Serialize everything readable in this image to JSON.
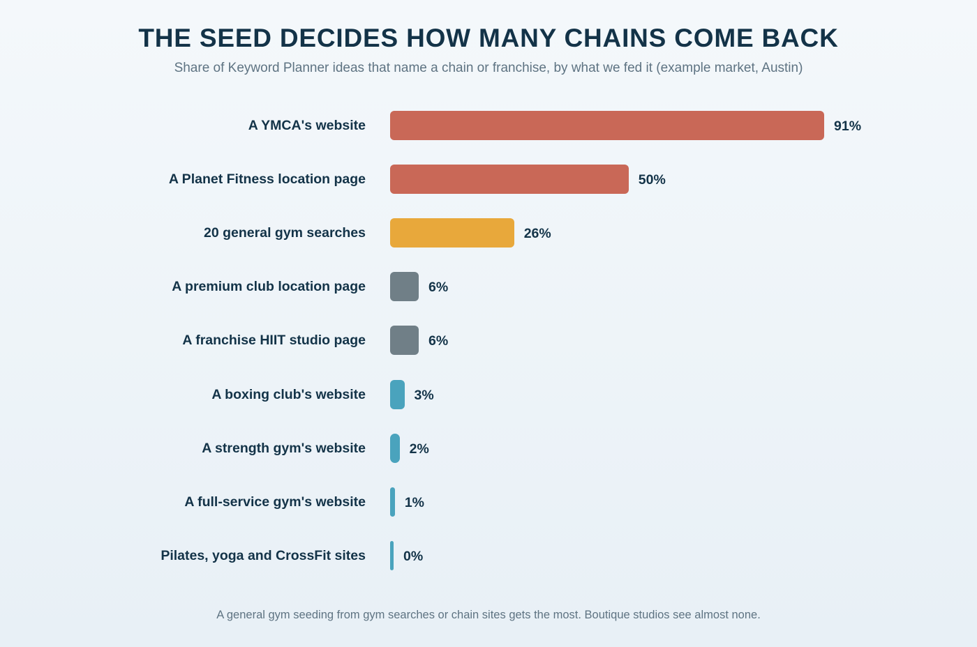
{
  "chart_data": {
    "type": "bar",
    "orientation": "horizontal",
    "title": "THE SEED DECIDES HOW MANY CHAINS COME BACK",
    "subtitle": "Share of Keyword Planner ideas that name a chain or franchise, by what we fed it (example market, Austin)",
    "categories": [
      "A YMCA's website",
      "A Planet Fitness location page",
      "20 general gym searches",
      "A premium club location page",
      "A franchise HIIT studio page",
      "A boxing club's website",
      "A strength gym's website",
      "A full-service gym's website",
      "Pilates, yoga and CrossFit sites"
    ],
    "values": [
      91,
      50,
      26,
      6,
      6,
      3,
      2,
      1,
      0
    ],
    "value_labels": [
      "91%",
      "50%",
      "26%",
      "6%",
      "6%",
      "3%",
      "2%",
      "1%",
      "0%"
    ],
    "bar_colors": [
      "#c96857",
      "#c96857",
      "#e8a83b",
      "#707f87",
      "#707f87",
      "#4aa3bd",
      "#4aa3bd",
      "#4aa3bd",
      "#4aa3bd"
    ],
    "xlim": [
      0,
      91
    ],
    "grid": false,
    "footnote": "A general gym seeding from gym searches or chain sites gets the most. Boutique studios see almost none."
  }
}
